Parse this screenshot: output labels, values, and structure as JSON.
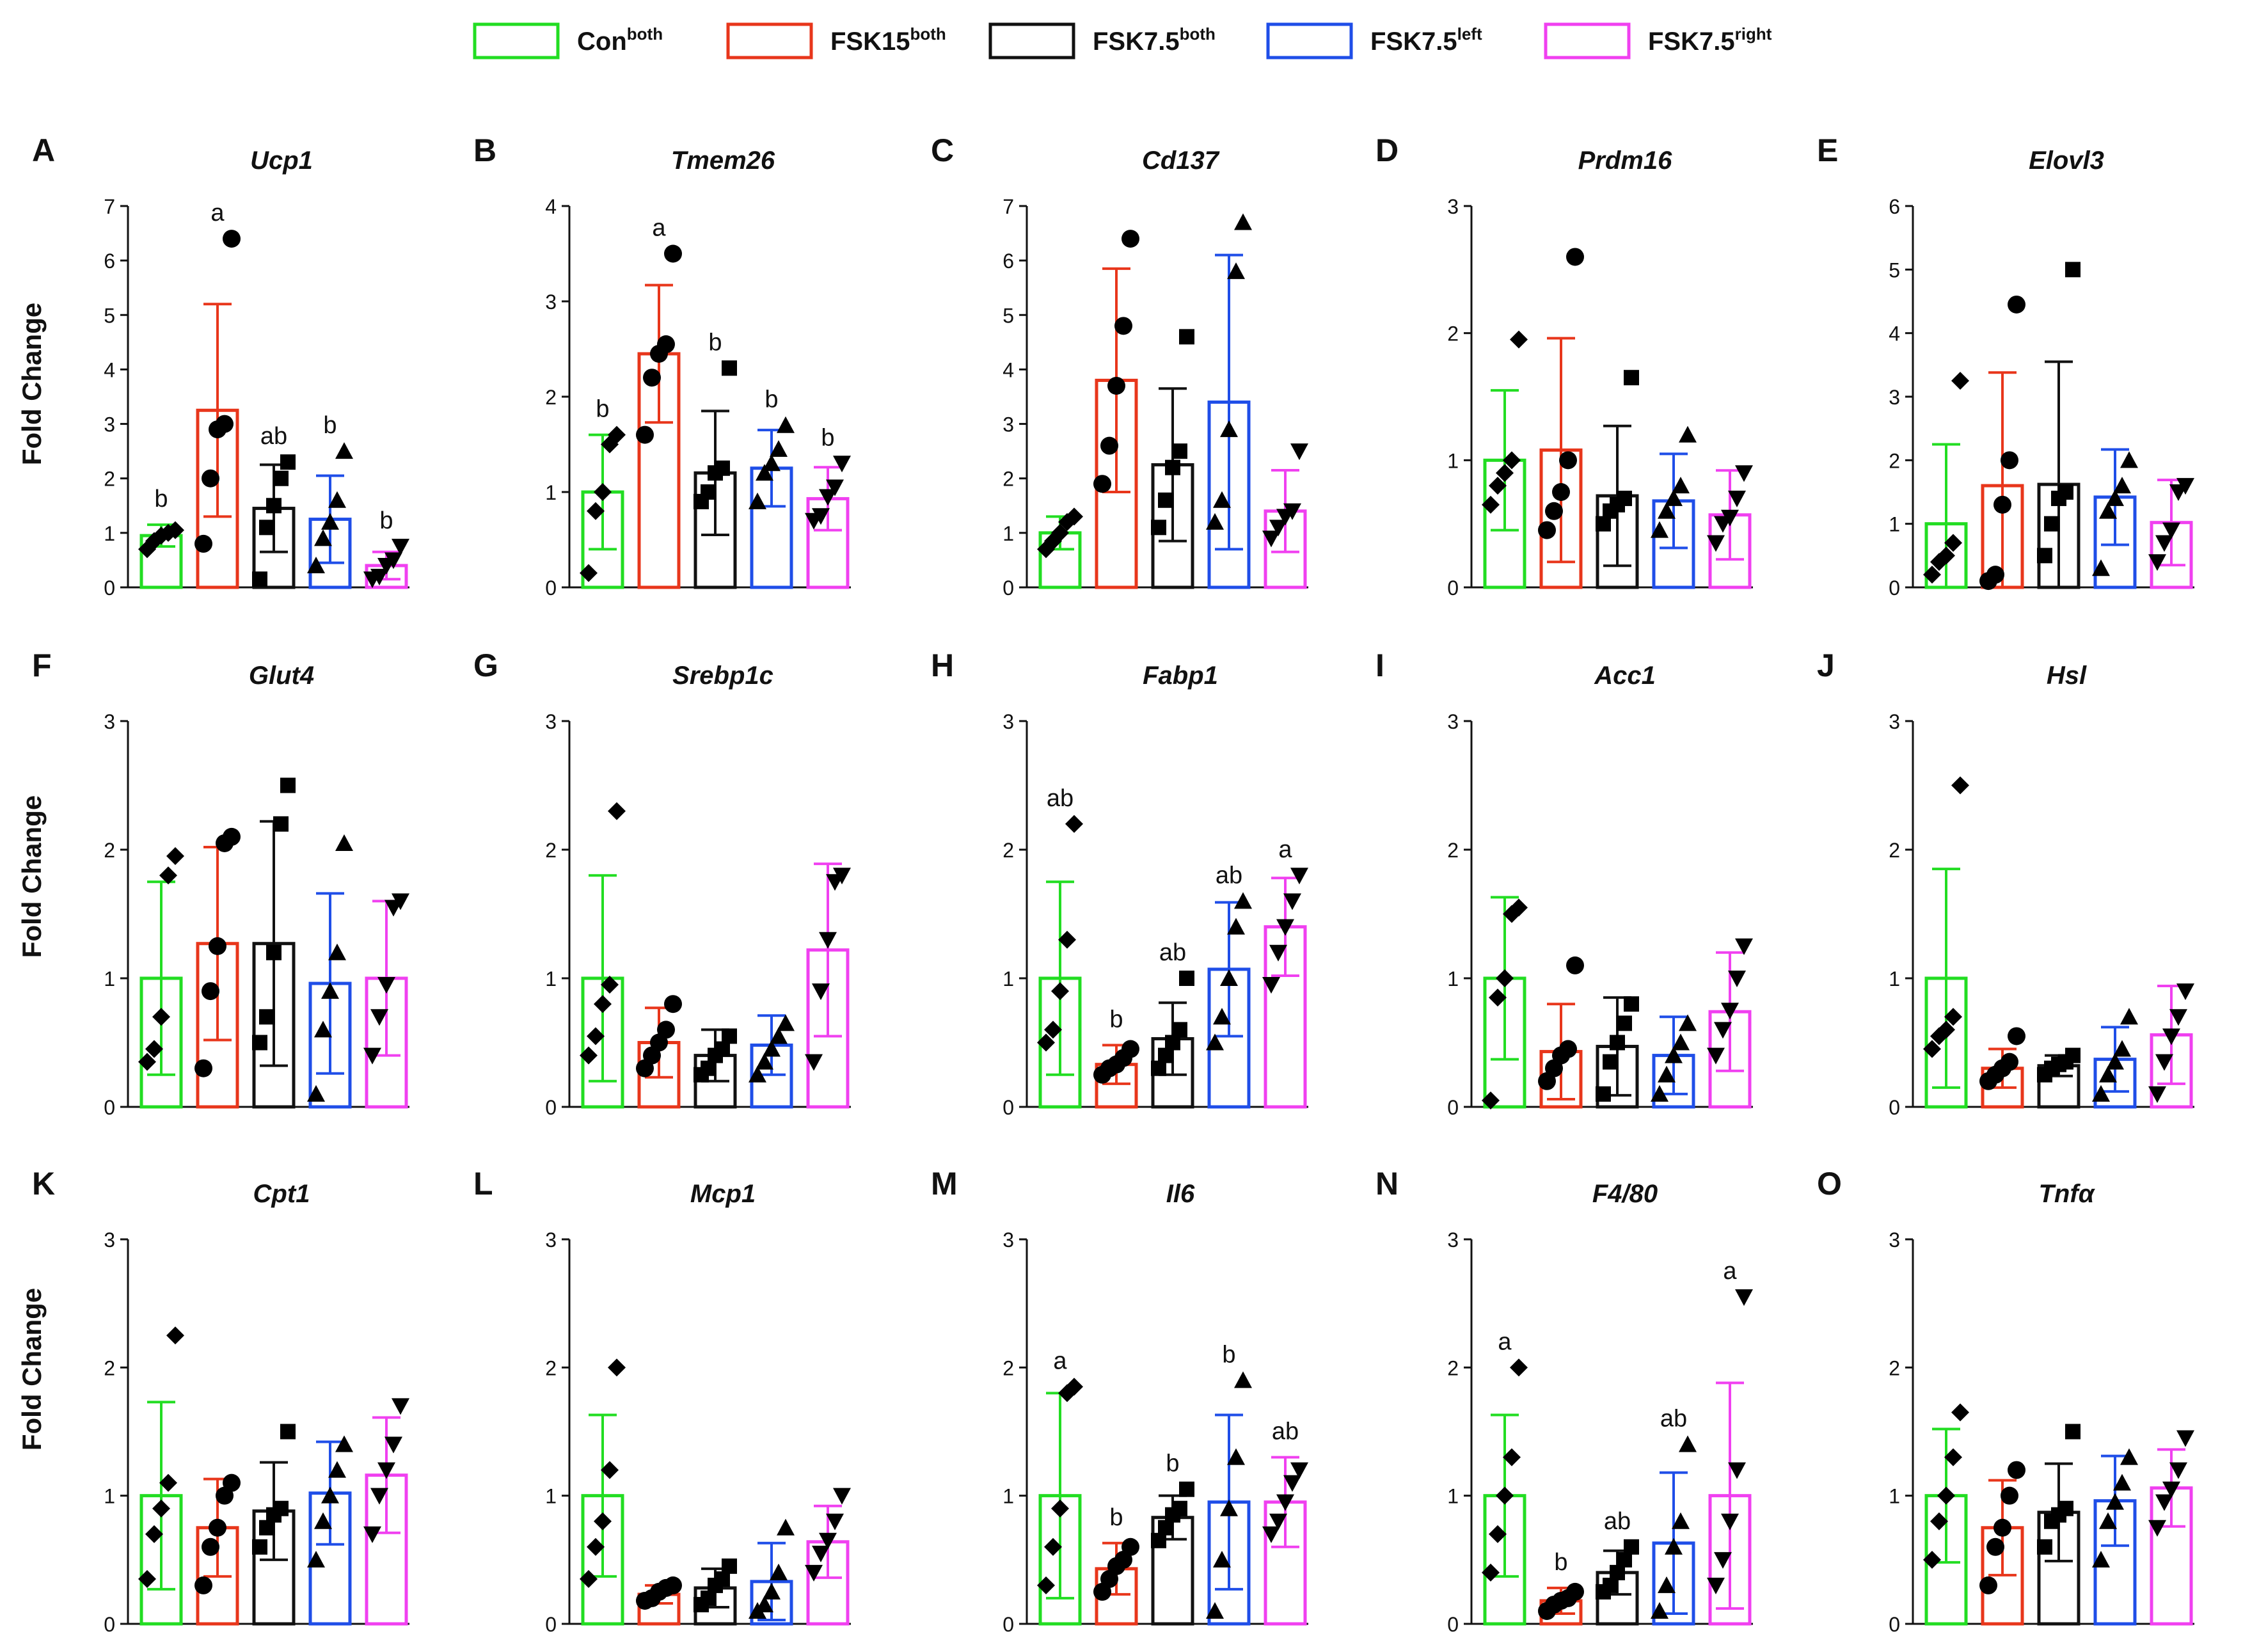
{
  "legend": [
    {
      "base": "Con",
      "sup": "both",
      "color": "#22dd22"
    },
    {
      "base": "FSK15",
      "sup": "both",
      "color": "#e8361b"
    },
    {
      "base": "FSK7.5",
      "sup": "both",
      "color": "#111111"
    },
    {
      "base": "FSK7.5",
      "sup": "left",
      "color": "#1f4ee8"
    },
    {
      "base": "FSK7.5",
      "sup": "right",
      "color": "#f040f0"
    }
  ],
  "ylabel": "Fold Change",
  "chart_data": [
    {
      "type": "bar",
      "panel": "A",
      "title": "Ucp1",
      "ylim": [
        0,
        7
      ],
      "yticks": [
        "0",
        "1",
        "2",
        "3",
        "4",
        "5",
        "6",
        "7"
      ],
      "categories": [
        "Con both",
        "FSK15 both",
        "FSK7.5 both",
        "FSK7.5 left",
        "FSK7.5 right"
      ],
      "values": [
        0.95,
        3.25,
        1.45,
        1.25,
        0.4
      ],
      "errors": [
        0.2,
        1.95,
        0.8,
        0.8,
        0.25
      ],
      "points": [
        [
          0.7,
          0.85,
          0.95,
          1.0,
          1.05
        ],
        [
          0.8,
          2.0,
          2.9,
          3.0,
          6.4
        ],
        [
          0.15,
          1.1,
          1.5,
          2.0,
          2.3
        ],
        [
          0.4,
          0.9,
          1.2,
          1.6,
          2.5
        ],
        [
          0.15,
          0.2,
          0.4,
          0.5,
          0.75
        ]
      ],
      "letters": [
        "b",
        "a",
        "ab",
        "b",
        "b"
      ]
    },
    {
      "type": "bar",
      "panel": "B",
      "title": "Tmem26",
      "ylim": [
        0,
        4
      ],
      "yticks": [
        "0",
        "1",
        "2",
        "3",
        "4"
      ],
      "categories": [
        "Con both",
        "FSK15 both",
        "FSK7.5 both",
        "FSK7.5 left",
        "FSK7.5 right"
      ],
      "values": [
        1.0,
        2.45,
        1.2,
        1.25,
        0.93
      ],
      "errors": [
        0.6,
        0.72,
        0.65,
        0.4,
        0.33
      ],
      "points": [
        [
          0.15,
          0.8,
          1.0,
          1.5,
          1.6
        ],
        [
          1.6,
          2.2,
          2.45,
          2.55,
          3.5
        ],
        [
          0.9,
          1.0,
          1.2,
          1.25,
          2.3
        ],
        [
          0.9,
          1.2,
          1.3,
          1.45,
          1.7
        ],
        [
          0.7,
          0.75,
          0.95,
          1.05,
          1.3
        ]
      ],
      "letters": [
        "b",
        "a",
        "b",
        "b",
        "b"
      ]
    },
    {
      "type": "bar",
      "panel": "C",
      "title": "Cd137",
      "ylim": [
        0,
        7
      ],
      "yticks": [
        "0",
        "1",
        "2",
        "3",
        "4",
        "5",
        "6",
        "7"
      ],
      "categories": [
        "Con both",
        "FSK15 both",
        "FSK7.5 both",
        "FSK7.5 left",
        "FSK7.5 right"
      ],
      "values": [
        1.0,
        3.8,
        2.25,
        3.4,
        1.4
      ],
      "errors": [
        0.3,
        2.05,
        1.4,
        2.7,
        0.75
      ],
      "points": [
        [
          0.7,
          0.85,
          1.0,
          1.2,
          1.3
        ],
        [
          1.9,
          2.6,
          3.7,
          4.8,
          6.4
        ],
        [
          1.1,
          1.6,
          2.2,
          2.5,
          4.6
        ],
        [
          1.2,
          1.6,
          2.9,
          5.8,
          6.7
        ],
        [
          0.9,
          1.1,
          1.3,
          1.4,
          2.5
        ]
      ],
      "letters": []
    },
    {
      "type": "bar",
      "panel": "D",
      "title": "Prdm16",
      "ylim": [
        0,
        3
      ],
      "yticks": [
        "0",
        "1",
        "2",
        "3"
      ],
      "categories": [
        "Con both",
        "FSK15 both",
        "FSK7.5 both",
        "FSK7.5 left",
        "FSK7.5 right"
      ],
      "values": [
        1.0,
        1.08,
        0.72,
        0.68,
        0.57
      ],
      "errors": [
        0.55,
        0.88,
        0.55,
        0.37,
        0.35
      ],
      "points": [
        [
          0.65,
          0.8,
          0.9,
          1.0,
          1.95
        ],
        [
          0.45,
          0.6,
          0.75,
          1.0,
          2.6
        ],
        [
          0.5,
          0.6,
          0.65,
          0.7,
          1.65
        ],
        [
          0.45,
          0.6,
          0.7,
          0.8,
          1.2
        ],
        [
          0.35,
          0.5,
          0.55,
          0.7,
          0.9
        ]
      ],
      "letters": []
    },
    {
      "type": "bar",
      "panel": "E",
      "title": "Elovl3",
      "ylim": [
        0,
        6
      ],
      "yticks": [
        "0",
        "1",
        "2",
        "3",
        "4",
        "5",
        "6"
      ],
      "categories": [
        "Con both",
        "FSK15 both",
        "FSK7.5 both",
        "FSK7.5 left",
        "FSK7.5 right"
      ],
      "values": [
        1.0,
        1.6,
        1.62,
        1.42,
        1.02
      ],
      "errors": [
        1.25,
        1.78,
        1.93,
        0.75,
        0.67
      ],
      "points": [
        [
          0.2,
          0.4,
          0.5,
          0.7,
          3.25
        ],
        [
          0.1,
          0.2,
          1.3,
          2.0,
          4.45
        ],
        [
          0.5,
          1.0,
          1.4,
          1.5,
          5.0
        ],
        [
          0.3,
          1.2,
          1.4,
          1.6,
          2.0
        ],
        [
          0.4,
          0.7,
          0.9,
          1.5,
          1.6
        ]
      ],
      "letters": []
    },
    {
      "type": "bar",
      "panel": "F",
      "title": "Glut4",
      "ylim": [
        0,
        3
      ],
      "yticks": [
        "0",
        "1",
        "2",
        "3"
      ],
      "categories": [
        "Con both",
        "FSK15 both",
        "FSK7.5 both",
        "FSK7.5 left",
        "FSK7.5 right"
      ],
      "values": [
        1.0,
        1.27,
        1.27,
        0.96,
        1.0
      ],
      "errors": [
        0.75,
        0.75,
        0.95,
        0.7,
        0.6
      ],
      "points": [
        [
          0.35,
          0.45,
          0.7,
          1.8,
          1.95
        ],
        [
          0.3,
          0.9,
          1.25,
          2.05,
          2.1
        ],
        [
          0.5,
          0.7,
          1.2,
          2.2,
          2.5
        ],
        [
          0.1,
          0.6,
          0.9,
          1.2,
          2.05
        ],
        [
          0.4,
          0.7,
          0.95,
          1.55,
          1.6
        ]
      ],
      "letters": []
    },
    {
      "type": "bar",
      "panel": "G",
      "title": "Srebp1c",
      "ylim": [
        0,
        3
      ],
      "yticks": [
        "0",
        "1",
        "2",
        "3"
      ],
      "categories": [
        "Con both",
        "FSK15 both",
        "FSK7.5 both",
        "FSK7.5 left",
        "FSK7.5 right"
      ],
      "values": [
        1.0,
        0.5,
        0.4,
        0.48,
        1.22
      ],
      "errors": [
        0.8,
        0.27,
        0.2,
        0.23,
        0.67
      ],
      "points": [
        [
          0.4,
          0.55,
          0.8,
          0.95,
          2.3
        ],
        [
          0.3,
          0.4,
          0.5,
          0.6,
          0.8
        ],
        [
          0.25,
          0.3,
          0.4,
          0.45,
          0.55
        ],
        [
          0.25,
          0.35,
          0.45,
          0.55,
          0.65
        ],
        [
          0.35,
          0.9,
          1.3,
          1.75,
          1.8
        ]
      ],
      "letters": []
    },
    {
      "type": "bar",
      "panel": "H",
      "title": "Fabp1",
      "ylim": [
        0,
        3
      ],
      "yticks": [
        "0",
        "1",
        "2",
        "3"
      ],
      "categories": [
        "Con both",
        "FSK15 both",
        "FSK7.5 both",
        "FSK7.5 left",
        "FSK7.5 right"
      ],
      "values": [
        1.0,
        0.33,
        0.53,
        1.07,
        1.4
      ],
      "errors": [
        0.75,
        0.15,
        0.28,
        0.52,
        0.38
      ],
      "points": [
        [
          0.5,
          0.6,
          0.9,
          1.3,
          2.2
        ],
        [
          0.25,
          0.3,
          0.33,
          0.38,
          0.45
        ],
        [
          0.3,
          0.4,
          0.5,
          0.6,
          1.0
        ],
        [
          0.5,
          0.7,
          1.0,
          1.4,
          1.6
        ],
        [
          0.95,
          1.2,
          1.4,
          1.6,
          1.8
        ]
      ],
      "letters": [
        "ab",
        "b",
        "ab",
        "ab",
        "a"
      ]
    },
    {
      "type": "bar",
      "panel": "I",
      "title": "Acc1",
      "ylim": [
        0,
        3
      ],
      "yticks": [
        "0",
        "1",
        "2",
        "3"
      ],
      "categories": [
        "Con both",
        "FSK15 both",
        "FSK7.5 both",
        "FSK7.5 left",
        "FSK7.5 right"
      ],
      "values": [
        1.0,
        0.43,
        0.47,
        0.4,
        0.74
      ],
      "errors": [
        0.63,
        0.37,
        0.38,
        0.3,
        0.46
      ],
      "points": [
        [
          0.05,
          0.85,
          1.0,
          1.5,
          1.55
        ],
        [
          0.2,
          0.3,
          0.4,
          0.45,
          1.1
        ],
        [
          0.1,
          0.35,
          0.5,
          0.65,
          0.8
        ],
        [
          0.1,
          0.25,
          0.4,
          0.5,
          0.65
        ],
        [
          0.4,
          0.6,
          0.75,
          1.0,
          1.25
        ]
      ],
      "letters": []
    },
    {
      "type": "bar",
      "panel": "J",
      "title": "Hsl",
      "ylim": [
        0,
        3
      ],
      "yticks": [
        "0",
        "1",
        "2",
        "3"
      ],
      "categories": [
        "Con both",
        "FSK15 both",
        "FSK7.5 both",
        "FSK7.5 left",
        "FSK7.5 right"
      ],
      "values": [
        1.0,
        0.3,
        0.32,
        0.37,
        0.56
      ],
      "errors": [
        0.85,
        0.15,
        0.08,
        0.25,
        0.38
      ],
      "points": [
        [
          0.45,
          0.55,
          0.6,
          0.7,
          2.5
        ],
        [
          0.2,
          0.25,
          0.3,
          0.35,
          0.55
        ],
        [
          0.25,
          0.3,
          0.33,
          0.35,
          0.4
        ],
        [
          0.1,
          0.25,
          0.35,
          0.45,
          0.7
        ],
        [
          0.1,
          0.35,
          0.55,
          0.7,
          0.9
        ]
      ],
      "letters": []
    },
    {
      "type": "bar",
      "panel": "K",
      "title": "Cpt1",
      "ylim": [
        0,
        3
      ],
      "yticks": [
        "0",
        "1",
        "2",
        "3"
      ],
      "categories": [
        "Con both",
        "FSK15 both",
        "FSK7.5 both",
        "FSK7.5 left",
        "FSK7.5 right"
      ],
      "values": [
        1.0,
        0.75,
        0.88,
        1.02,
        1.16
      ],
      "errors": [
        0.73,
        0.38,
        0.38,
        0.4,
        0.45
      ],
      "points": [
        [
          0.35,
          0.7,
          0.9,
          1.1,
          2.25
        ],
        [
          0.3,
          0.6,
          0.75,
          1.0,
          1.1
        ],
        [
          0.6,
          0.75,
          0.85,
          0.9,
          1.5
        ],
        [
          0.5,
          0.8,
          1.0,
          1.2,
          1.4
        ],
        [
          0.7,
          1.0,
          1.2,
          1.4,
          1.7
        ]
      ],
      "letters": []
    },
    {
      "type": "bar",
      "panel": "L",
      "title": "Mcp1",
      "ylim": [
        0,
        3
      ],
      "yticks": [
        "0",
        "1",
        "2",
        "3"
      ],
      "categories": [
        "Con both",
        "FSK15 both",
        "FSK7.5 both",
        "FSK7.5 left",
        "FSK7.5 right"
      ],
      "values": [
        1.0,
        0.23,
        0.28,
        0.33,
        0.64
      ],
      "errors": [
        0.63,
        0.07,
        0.15,
        0.3,
        0.28
      ],
      "points": [
        [
          0.35,
          0.6,
          0.8,
          1.2,
          2.0
        ],
        [
          0.18,
          0.2,
          0.25,
          0.28,
          0.3
        ],
        [
          0.15,
          0.2,
          0.3,
          0.35,
          0.45
        ],
        [
          0.1,
          0.15,
          0.25,
          0.4,
          0.75
        ],
        [
          0.4,
          0.55,
          0.65,
          0.8,
          1.0
        ]
      ],
      "letters": []
    },
    {
      "type": "bar",
      "panel": "M",
      "title": "Il6",
      "ylim": [
        0,
        3
      ],
      "yticks": [
        "0",
        "1",
        "2",
        "3"
      ],
      "categories": [
        "Con both",
        "FSK15 both",
        "FSK7.5 both",
        "FSK7.5 left",
        "FSK7.5 right"
      ],
      "values": [
        1.0,
        0.43,
        0.83,
        0.95,
        0.95
      ],
      "errors": [
        0.8,
        0.2,
        0.17,
        0.68,
        0.35
      ],
      "points": [
        [
          0.3,
          0.6,
          0.9,
          1.8,
          1.85
        ],
        [
          0.25,
          0.35,
          0.45,
          0.5,
          0.6
        ],
        [
          0.65,
          0.75,
          0.85,
          0.9,
          1.05
        ],
        [
          0.1,
          0.5,
          0.9,
          1.3,
          1.9
        ],
        [
          0.7,
          0.8,
          0.95,
          1.1,
          1.2
        ]
      ],
      "letters": [
        "a",
        "b",
        "b",
        "b",
        "ab"
      ]
    },
    {
      "type": "bar",
      "panel": "N",
      "title": "F4/80",
      "ylim": [
        0,
        3
      ],
      "yticks": [
        "0",
        "1",
        "2",
        "3"
      ],
      "categories": [
        "Con both",
        "FSK15 both",
        "FSK7.5 both",
        "FSK7.5 left",
        "FSK7.5 right"
      ],
      "values": [
        1.0,
        0.18,
        0.4,
        0.63,
        1.0
      ],
      "errors": [
        0.63,
        0.1,
        0.17,
        0.55,
        0.88
      ],
      "points": [
        [
          0.4,
          0.7,
          1.0,
          1.3,
          2.0
        ],
        [
          0.1,
          0.15,
          0.18,
          0.2,
          0.25
        ],
        [
          0.25,
          0.3,
          0.4,
          0.5,
          0.6
        ],
        [
          0.1,
          0.3,
          0.6,
          0.8,
          1.4
        ],
        [
          0.3,
          0.5,
          0.8,
          1.2,
          2.55
        ]
      ],
      "letters": [
        "a",
        "b",
        "ab",
        "ab",
        "a"
      ]
    },
    {
      "type": "bar",
      "panel": "O",
      "title": "Tnfα",
      "ylim": [
        0,
        3
      ],
      "yticks": [
        "0",
        "1",
        "2",
        "3"
      ],
      "categories": [
        "Con both",
        "FSK15 both",
        "FSK7.5 both",
        "FSK7.5 left",
        "FSK7.5 right"
      ],
      "values": [
        1.0,
        0.75,
        0.87,
        0.96,
        1.06
      ],
      "errors": [
        0.52,
        0.37,
        0.38,
        0.35,
        0.3
      ],
      "points": [
        [
          0.5,
          0.8,
          1.0,
          1.3,
          1.65
        ],
        [
          0.3,
          0.6,
          0.75,
          1.0,
          1.2
        ],
        [
          0.6,
          0.8,
          0.85,
          0.9,
          1.5
        ],
        [
          0.5,
          0.8,
          0.95,
          1.1,
          1.3
        ],
        [
          0.75,
          0.95,
          1.05,
          1.2,
          1.45
        ]
      ],
      "letters": []
    }
  ]
}
